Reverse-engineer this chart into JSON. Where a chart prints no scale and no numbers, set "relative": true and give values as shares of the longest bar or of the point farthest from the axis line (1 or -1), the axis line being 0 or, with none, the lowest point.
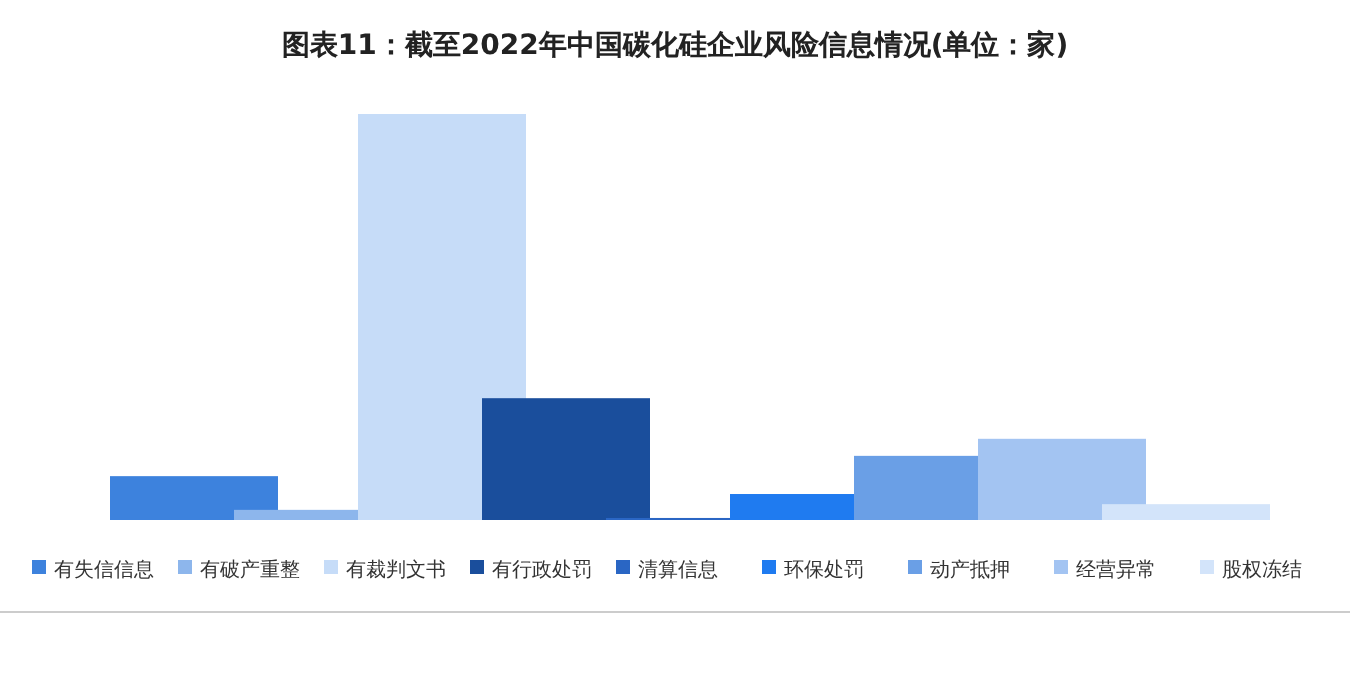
{
  "chart_data": {
    "type": "bar",
    "title": "图表11：截至2022年中国碳化硅企业风险信息情况(单位：家)",
    "relative": true,
    "legend": "bottom",
    "categories": [
      null
    ],
    "series": [
      {
        "name": "有失信信息",
        "color": "#3d82dd",
        "values": [
          0.108
        ]
      },
      {
        "name": "有破产重整",
        "color": "#8db6ec",
        "values": [
          0.025
        ]
      },
      {
        "name": "有裁判文书",
        "color": "#c6dcf8",
        "values": [
          1
        ]
      },
      {
        "name": "有行政处罚",
        "color": "#1a4e9c",
        "values": [
          0.3
        ]
      },
      {
        "name": "清算信息",
        "color": "#2a66c4",
        "values": [
          0.005
        ]
      },
      {
        "name": "环保处罚",
        "color": "#1f7bf0",
        "values": [
          0.064
        ]
      },
      {
        "name": "动产抵押",
        "color": "#6a9fe6",
        "values": [
          0.158
        ]
      },
      {
        "name": "经营异常",
        "color": "#a3c4f2",
        "values": [
          0.2
        ]
      },
      {
        "name": "股权冻结",
        "color": "#d3e4fa",
        "values": [
          0.039
        ]
      }
    ]
  }
}
